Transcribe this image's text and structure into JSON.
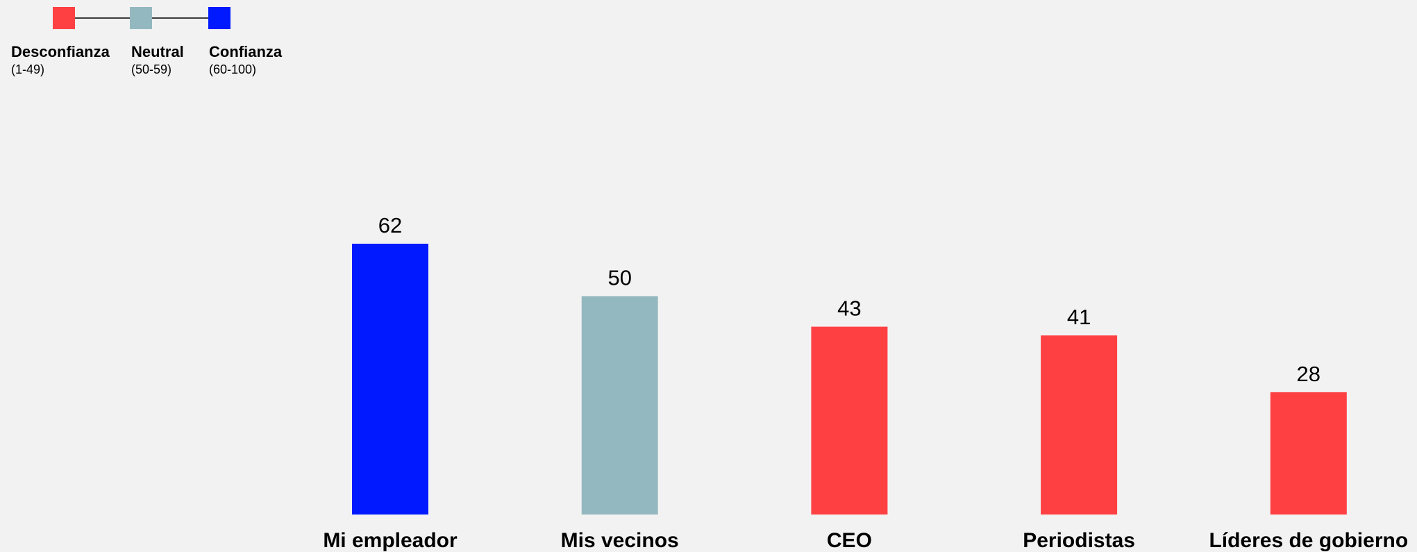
{
  "chart_data": {
    "type": "bar",
    "categories": [
      "Mi empleador",
      "Mis vecinos",
      "CEO",
      "Periodistas",
      "Líderes de gobierno"
    ],
    "values": [
      62,
      50,
      43,
      41,
      28
    ],
    "colors": [
      "#0019ff",
      "#94b8bf",
      "#ff4043",
      "#ff4043",
      "#ff4043"
    ],
    "ylim": [
      0,
      100
    ],
    "legend": [
      {
        "name": "Desconfianza",
        "range": "(1-49)",
        "color": "#ff4043"
      },
      {
        "name": "Neutral",
        "range": "(50-59)",
        "color": "#94b8bf"
      },
      {
        "name": "Confianza",
        "range": "(60-100)",
        "color": "#0019ff"
      }
    ]
  }
}
